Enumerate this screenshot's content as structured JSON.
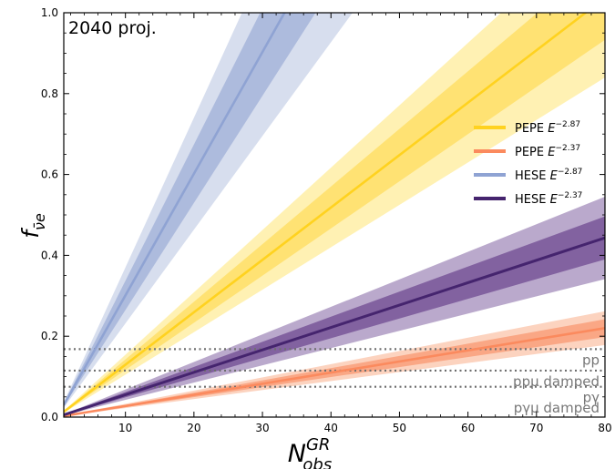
{
  "chart_data": {
    "type": "line",
    "annotation": "2040 proj.",
    "xlabel": {
      "base": "N",
      "sup": "GR",
      "sub": "obs"
    },
    "ylabel": {
      "base": "f",
      "sub": "ν̄e"
    },
    "xlim": [
      1,
      80
    ],
    "ylim": [
      0,
      1.0
    ],
    "xticks": [
      10,
      20,
      30,
      40,
      50,
      60,
      70,
      80
    ],
    "yticks": [
      0.0,
      0.2,
      0.4,
      0.6,
      0.8,
      1.0
    ],
    "series": [
      {
        "name": "PEPE",
        "exponent": "−2.87",
        "color": "#FFD21F",
        "band_inner": "#FFE06B",
        "band_outer": "#FFEEA6",
        "slope": 0.01296,
        "inner_frac": 0.1,
        "outer_frac": 0.19
      },
      {
        "name": "PEPE",
        "exponent": "−2.37",
        "color": "#FB8A5E",
        "band_inner": "#F9A27E",
        "band_outer": "#FBCBB4",
        "slope": 0.00275,
        "inner_frac": 0.1,
        "outer_frac": 0.19
      },
      {
        "name": "HESE",
        "exponent": "−2.87",
        "color": "#8FA3D3",
        "band_inner": "#A9B7DA",
        "band_outer": "#D0D8EB",
        "slope": 0.0301,
        "inner_frac": 0.12,
        "outer_frac": 0.23
      },
      {
        "name": "HESE",
        "exponent": "−2.37",
        "color": "#45246E",
        "band_inner": "#7C5A9B",
        "band_outer": "#AE9AC3",
        "slope": 0.00554,
        "inner_frac": 0.12,
        "outer_frac": 0.23
      }
    ],
    "reference_lines": [
      {
        "label": "pp",
        "y": 0.168
      },
      {
        "label": "ppμ damped",
        "y": 0.115
      },
      {
        "label": "pγ",
        "y": 0.075
      },
      {
        "label": "pγμ damped",
        "y": 0.0
      }
    ],
    "legend": {
      "position": "right"
    },
    "grid": false
  }
}
